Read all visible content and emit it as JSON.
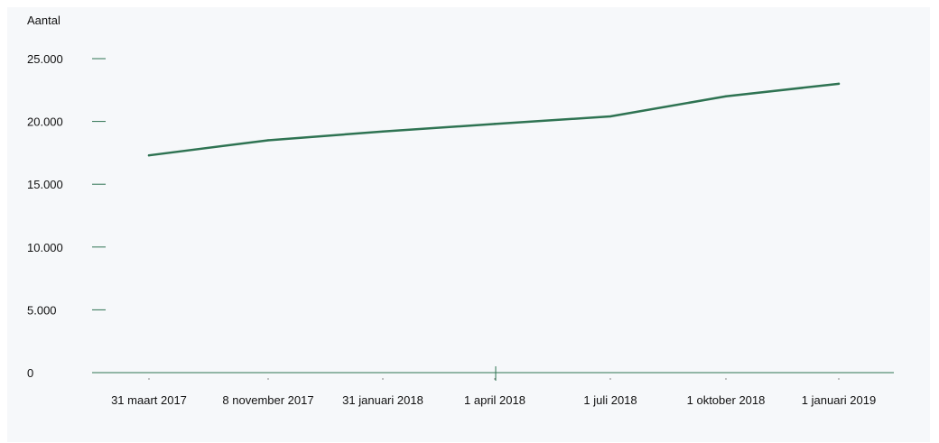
{
  "chart_data": {
    "type": "line",
    "ylabel": "Aantal",
    "ylim": [
      0,
      25000
    ],
    "y_ticks": [
      {
        "value": 0,
        "label": "0"
      },
      {
        "value": 5000,
        "label": "5.000"
      },
      {
        "value": 10000,
        "label": "10.000"
      },
      {
        "value": 15000,
        "label": "15.000"
      },
      {
        "value": 20000,
        "label": "20.000"
      },
      {
        "value": 25000,
        "label": "25.000"
      }
    ],
    "categories": [
      "31 maart 2017",
      "8 november 2017",
      "31 januari 2018",
      "1 april 2018",
      "1 juli 2018",
      "1 oktober 2018",
      "1 januari 2019"
    ],
    "values": [
      17300,
      18500,
      19200,
      19800,
      20400,
      22000,
      23000
    ],
    "grid": false,
    "colors": {
      "line": "#2e7352",
      "tick": "#2e7352",
      "axis": "#2e7352",
      "background": "#f6f8fa"
    }
  }
}
